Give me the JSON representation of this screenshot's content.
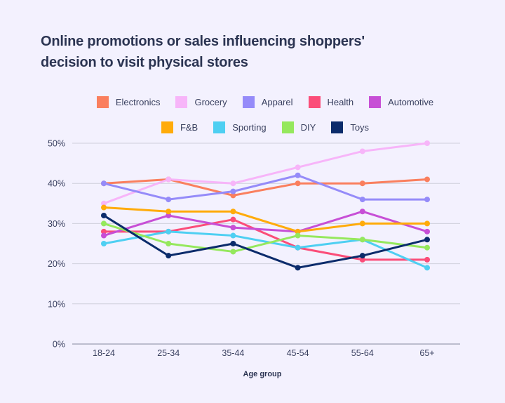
{
  "chart_data": {
    "type": "line",
    "title": "Online promotions or sales influencing shoppers' decision to visit physical stores",
    "xlabel": "Age group",
    "ylabel": "",
    "categories": [
      "18-24",
      "25-34",
      "35-44",
      "45-54",
      "55-64",
      "65+"
    ],
    "ylim": [
      0,
      50
    ],
    "yticks": [
      0,
      10,
      20,
      30,
      40,
      50
    ],
    "ytick_labels": [
      "0%",
      "10%",
      "20%",
      "30%",
      "40%",
      "50%"
    ],
    "grid": true,
    "legend_position": "top-center",
    "series": [
      {
        "name": "Electronics",
        "color": "#fa7f5e",
        "values": [
          40,
          41,
          37,
          40,
          40,
          41
        ]
      },
      {
        "name": "Grocery",
        "color": "#f7b5f9",
        "values": [
          35,
          41,
          40,
          44,
          48,
          50
        ]
      },
      {
        "name": "Apparel",
        "color": "#958bf9",
        "values": [
          40,
          36,
          38,
          42,
          36,
          36
        ]
      },
      {
        "name": "Health",
        "color": "#fb4d79",
        "values": [
          28,
          28,
          31,
          24,
          21,
          21
        ]
      },
      {
        "name": "Automotive",
        "color": "#c74fd6",
        "values": [
          27,
          32,
          29,
          28,
          33,
          28
        ]
      },
      {
        "name": "F&B",
        "color": "#ffab0a",
        "values": [
          34,
          33,
          33,
          28,
          30,
          30
        ]
      },
      {
        "name": "Sporting",
        "color": "#4ecff2",
        "values": [
          25,
          28,
          27,
          24,
          26,
          19
        ]
      },
      {
        "name": "DIY",
        "color": "#95e85d",
        "values": [
          30,
          25,
          23,
          27,
          26,
          24
        ]
      },
      {
        "name": "Toys",
        "color": "#0b2b6b",
        "values": [
          32,
          22,
          25,
          19,
          22,
          26
        ]
      }
    ]
  },
  "legend_rows": [
    [
      0,
      1,
      2,
      3,
      4
    ],
    [
      5,
      6,
      7,
      8
    ]
  ]
}
